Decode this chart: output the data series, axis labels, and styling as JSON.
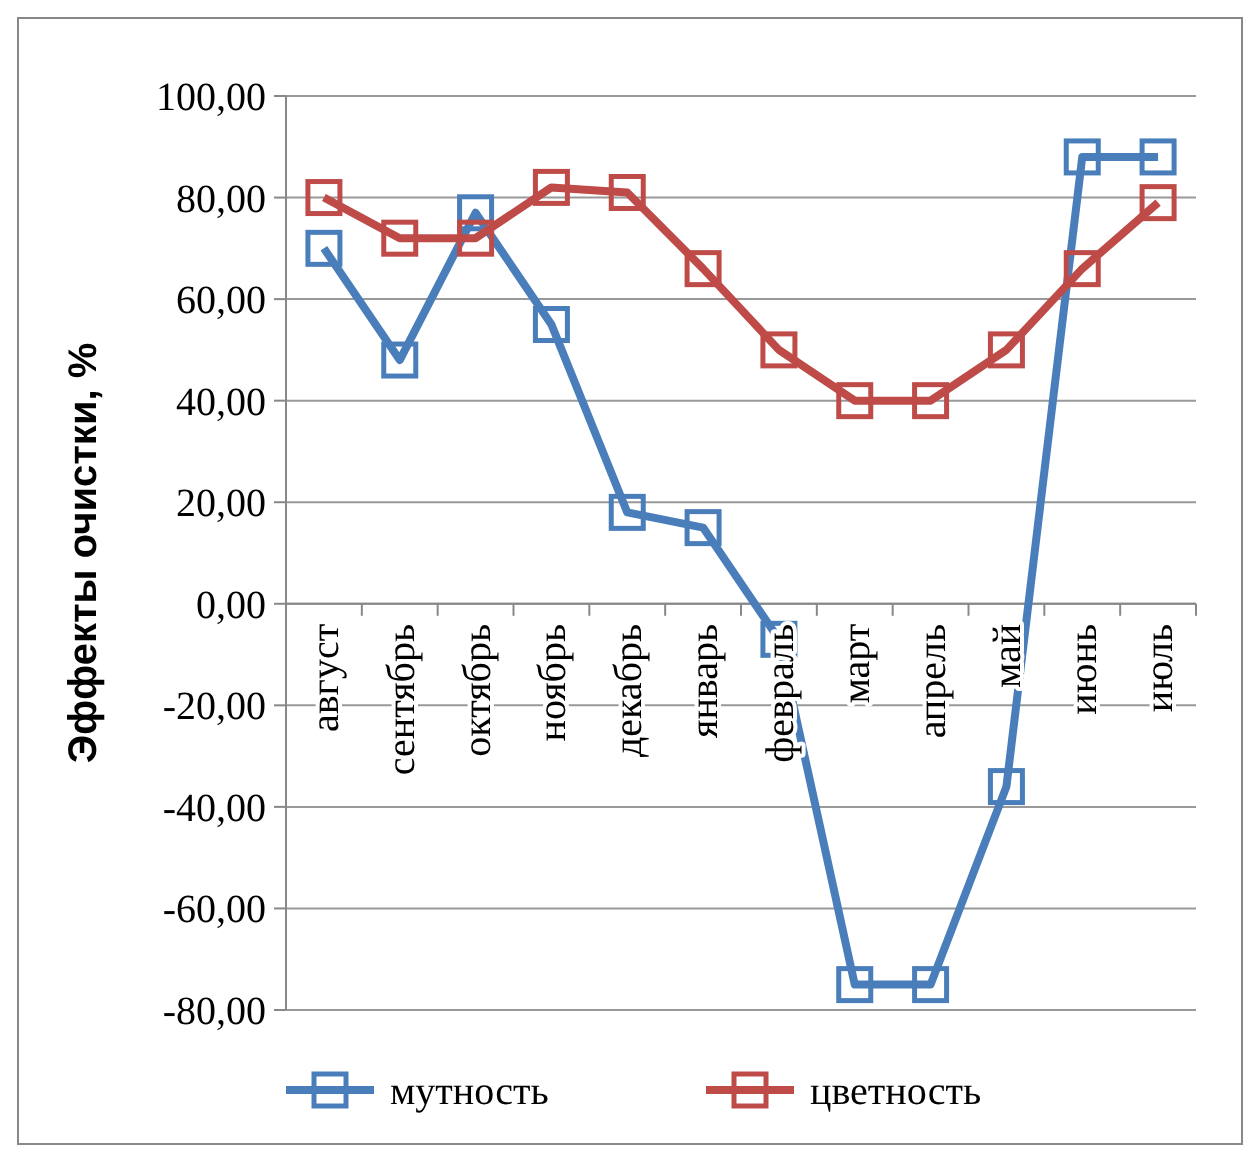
{
  "chart_data": {
    "type": "line",
    "ylabel": "Эффекты очистки, %",
    "categories": [
      "август",
      "сентябрь",
      "октябрь",
      "ноябрь",
      "декабрь",
      "январь",
      "февраль",
      "март",
      "апрель",
      "май",
      "июнь",
      "июль"
    ],
    "series": [
      {
        "name": "мутность",
        "color": "#4a7ebb",
        "values": [
          70,
          48,
          77,
          55,
          18,
          15,
          -7,
          -75,
          -75,
          -36,
          88,
          88
        ]
      },
      {
        "name": "цветность",
        "color": "#be4b48",
        "values": [
          80,
          72,
          72,
          82,
          81,
          66,
          50,
          40,
          40,
          50,
          66,
          79
        ]
      }
    ],
    "ylim": [
      -80,
      100
    ],
    "yticks": [
      {
        "value": -80,
        "label": "-80,00"
      },
      {
        "value": -60,
        "label": "-60,00"
      },
      {
        "value": -40,
        "label": "-40,00"
      },
      {
        "value": -20,
        "label": "-20,00"
      },
      {
        "value": 0,
        "label": "0,00"
      },
      {
        "value": 20,
        "label": "20,00"
      },
      {
        "value": 40,
        "label": "40,00"
      },
      {
        "value": 60,
        "label": "60,00"
      },
      {
        "value": 80,
        "label": "80,00"
      },
      {
        "value": 100,
        "label": "100,00"
      }
    ],
    "grid": "y",
    "legend": "bottom",
    "marker": "square",
    "line_style": "solid"
  }
}
